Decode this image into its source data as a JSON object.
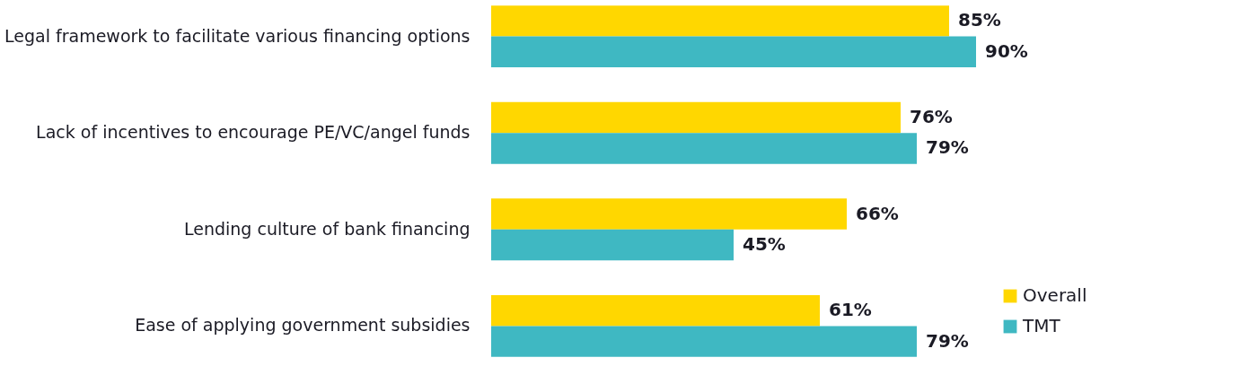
{
  "chart_data": {
    "type": "bar",
    "orientation": "horizontal",
    "categories": [
      "Legal framework to facilitate various financing options",
      "Lack of incentives to encourage PE/VC/angel funds",
      "Lending culture of bank financing",
      "Ease of applying government subsidies"
    ],
    "series": [
      {
        "name": "Overall",
        "color": "#ffd700",
        "values": [
          85,
          76,
          66,
          61
        ],
        "value_labels": [
          "85%",
          "76%",
          "66%",
          "61%"
        ]
      },
      {
        "name": "TMT",
        "color": "#3fb8c2",
        "values": [
          90,
          79,
          45,
          79
        ],
        "value_labels": [
          "90%",
          "79%",
          "45%",
          "79%"
        ]
      }
    ],
    "legend": "bottom right"
  }
}
